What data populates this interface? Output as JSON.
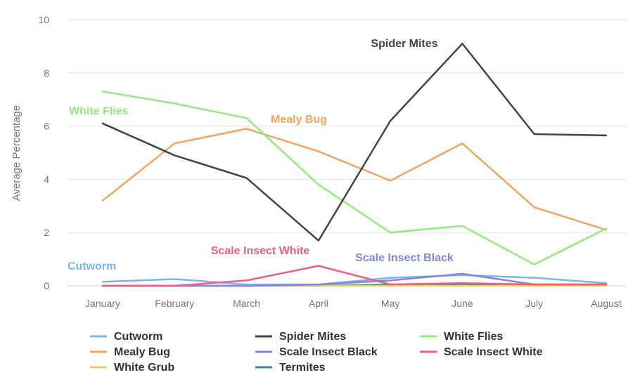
{
  "chart_data": {
    "type": "line",
    "title": "",
    "xlabel": "",
    "ylabel": "Average Percentage",
    "ylim": [
      0,
      10
    ],
    "yticks": [
      0,
      2,
      4,
      6,
      8,
      10
    ],
    "grid": true,
    "legend_position": "bottom",
    "categories": [
      "January",
      "February",
      "March",
      "April",
      "May",
      "June",
      "July",
      "August"
    ],
    "series": [
      {
        "name": "Cutworm",
        "color": "#7cb5ec",
        "values": [
          0.15,
          0.25,
          0.05,
          0.05,
          0.3,
          0.4,
          0.3,
          0.1
        ],
        "label": "Cutworm"
      },
      {
        "name": "Spider Mites",
        "color": "#434348",
        "values": [
          6.1,
          4.9,
          4.05,
          1.7,
          6.2,
          9.1,
          5.7,
          5.65
        ],
        "label": "Spider Mites"
      },
      {
        "name": "White Flies",
        "color": "#90ed7d",
        "values": [
          7.3,
          6.85,
          6.3,
          3.8,
          2.0,
          2.25,
          0.8,
          2.15
        ],
        "label": "White Flies"
      },
      {
        "name": "Mealy Bug",
        "color": "#f7a35c",
        "values": [
          3.2,
          5.35,
          5.9,
          5.05,
          3.95,
          5.35,
          2.95,
          2.1
        ],
        "label": "Mealy Bug"
      },
      {
        "name": "Scale Insect Black",
        "color": "#8085e9",
        "values": [
          0.0,
          0.0,
          0.0,
          0.05,
          0.2,
          0.45,
          0.05,
          0.05
        ],
        "label": "Scale Insect Black"
      },
      {
        "name": "Scale Insect White",
        "color": "#f15c80",
        "values": [
          0.0,
          0.0,
          0.2,
          0.75,
          0.05,
          0.1,
          0.05,
          0.05
        ],
        "label": "Scale Insect White"
      },
      {
        "name": "White Grub",
        "color": "#e4d354",
        "values": [
          0.0,
          0.0,
          0.0,
          0.0,
          0.0,
          0.0,
          0.0,
          0.0
        ]
      },
      {
        "name": "Termites",
        "color": "#2b908f",
        "values": [
          0.0,
          0.0,
          0.0,
          0.0,
          0.05,
          0.05,
          0.05,
          0.05
        ]
      }
    ]
  }
}
